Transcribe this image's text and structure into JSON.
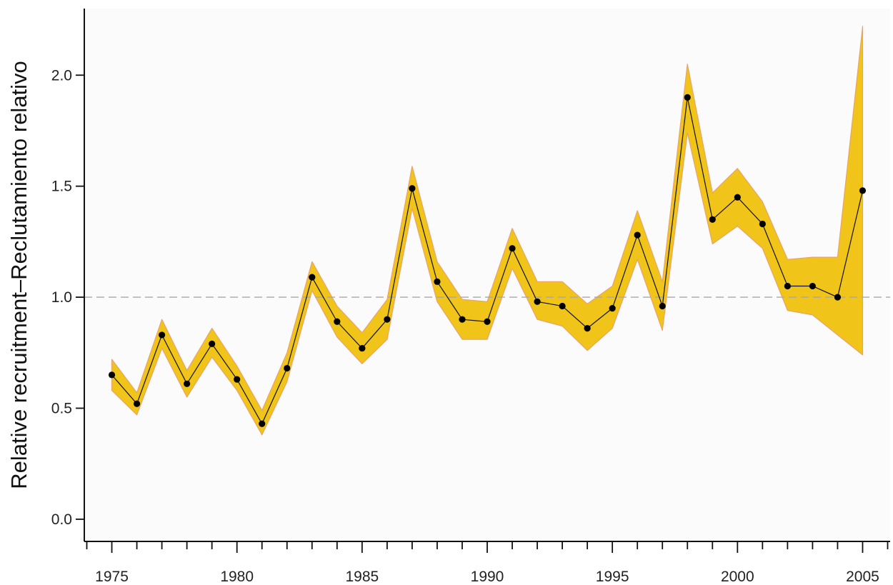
{
  "chart_data": {
    "type": "line",
    "title": "",
    "xlabel": "",
    "ylabel": "Relative recruitment–Reclutamiento relativo",
    "xlim": [
      1973.9,
      2006.1
    ],
    "ylim": [
      -0.1,
      2.3
    ],
    "x_ticks": [
      1975,
      1980,
      1985,
      1990,
      1995,
      2000,
      2005
    ],
    "x_tick_labels": [
      "1975",
      "1980",
      "1985",
      "1990",
      "1995",
      "2000",
      "2005"
    ],
    "y_ticks": [
      0.0,
      0.5,
      1.0,
      1.5,
      2.0
    ],
    "y_tick_labels": [
      "0.0",
      "0.5",
      "1.0",
      "1.5",
      "2.0"
    ],
    "reference_line": 1.0,
    "grid": false,
    "legend": "none",
    "colors": {
      "band": "#f0c419",
      "band_edge": "#e8a36a",
      "line": "#111111",
      "points": "#000000",
      "reference": "#a8a8a8",
      "plot_background": "#fcfbfb"
    },
    "series": [
      {
        "x": [
          1975,
          1976,
          1977,
          1978,
          1979,
          1980,
          1981,
          1982,
          1983,
          1984,
          1985,
          1986,
          1987,
          1988,
          1989,
          1990,
          1991,
          1992,
          1993,
          1994,
          1995,
          1996,
          1997,
          1998,
          1999,
          2000,
          2001,
          2002,
          2003,
          2004,
          2005
        ],
        "values": [
          0.65,
          0.52,
          0.83,
          0.61,
          0.79,
          0.63,
          0.43,
          0.68,
          1.09,
          0.89,
          0.77,
          0.9,
          1.49,
          1.07,
          0.9,
          0.89,
          1.22,
          0.98,
          0.96,
          0.86,
          0.95,
          1.28,
          0.96,
          1.9,
          1.35,
          1.45,
          1.33,
          1.05,
          1.05,
          1.0,
          1.48
        ],
        "lower": [
          0.58,
          0.47,
          0.77,
          0.55,
          0.73,
          0.58,
          0.38,
          0.62,
          1.03,
          0.82,
          0.7,
          0.81,
          1.4,
          0.98,
          0.81,
          0.81,
          1.13,
          0.9,
          0.87,
          0.76,
          0.86,
          1.17,
          0.85,
          1.74,
          1.24,
          1.32,
          1.22,
          0.94,
          0.92,
          0.83,
          0.74
        ],
        "upper": [
          0.72,
          0.57,
          0.9,
          0.67,
          0.86,
          0.69,
          0.49,
          0.75,
          1.16,
          0.96,
          0.84,
          0.99,
          1.59,
          1.16,
          0.99,
          0.98,
          1.31,
          1.07,
          1.07,
          0.97,
          1.05,
          1.39,
          1.07,
          2.05,
          1.47,
          1.58,
          1.43,
          1.17,
          1.18,
          1.18,
          2.22
        ]
      }
    ]
  }
}
